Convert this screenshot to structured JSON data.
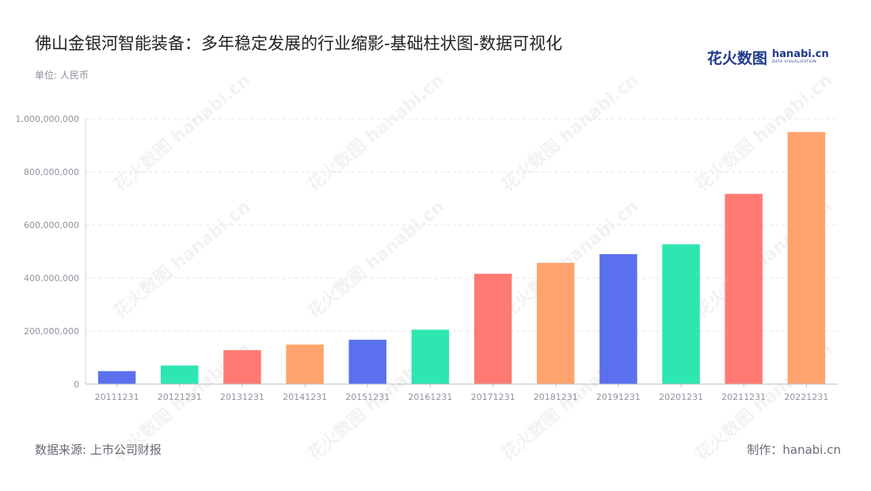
{
  "title": "佛山金银河智能装备：多年稳定发展的行业缩影-基础柱状图-数据可视化",
  "unit_label": "单位: 人民币",
  "brand": {
    "cn": "花火数图",
    "en": "hanabi.cn",
    "sub": "DATA VISUALIZATION"
  },
  "footer": {
    "source": "数据来源: 上市公司财报",
    "credit": "制作：hanabi.cn"
  },
  "watermark_text": "花火数图 hanabi.cn",
  "chart_data": {
    "type": "bar",
    "categories": [
      "20111231",
      "20121231",
      "20131231",
      "20141231",
      "20151231",
      "20161231",
      "20171231",
      "20181231",
      "20191231",
      "20201231",
      "20211231",
      "20221231"
    ],
    "values": [
      49000000,
      70000000,
      128000000,
      149000000,
      167000000,
      205000000,
      416000000,
      457000000,
      490000000,
      527000000,
      717000000,
      950000000
    ],
    "bar_colors": [
      "#5b70ee",
      "#2ee6b0",
      "#ff7a72",
      "#ffa36e",
      "#5b70ee",
      "#2ee6b0",
      "#ff7a72",
      "#ffa36e",
      "#5b70ee",
      "#2ee6b0",
      "#ff7a72",
      "#ffa36e"
    ],
    "ylim": [
      0,
      1000000000
    ],
    "yticks": [
      0,
      200000000,
      400000000,
      600000000,
      800000000,
      1000000000
    ],
    "ytick_labels": [
      "0",
      "200,000,000",
      "400,000,000",
      "600,000,000",
      "800,000,000",
      "1,000,000,000"
    ],
    "grid": true,
    "xlabel": "",
    "ylabel": ""
  }
}
